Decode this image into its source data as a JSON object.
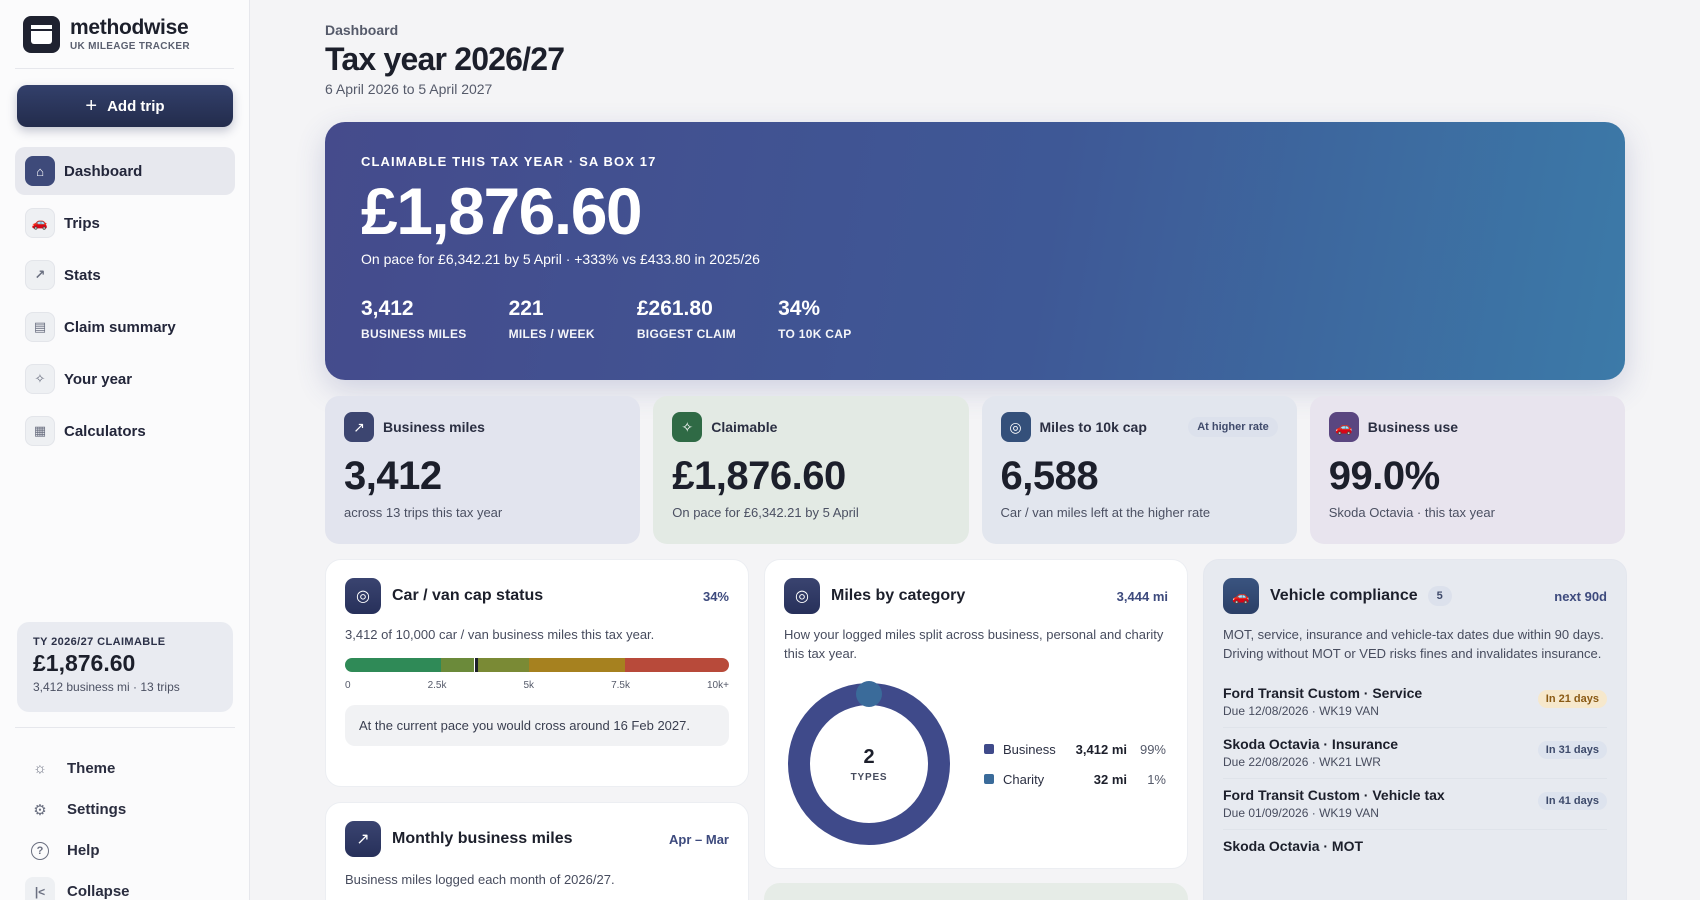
{
  "brand": {
    "name": "methodwise",
    "sub": "UK MILEAGE TRACKER"
  },
  "sidebar": {
    "add_trip": "Add trip",
    "nav": [
      {
        "label": "Dashboard",
        "icon": "home-icon",
        "glyph": "⌂"
      },
      {
        "label": "Trips",
        "icon": "car-icon",
        "glyph": "🚗"
      },
      {
        "label": "Stats",
        "icon": "trend-icon",
        "glyph": "↗"
      },
      {
        "label": "Claim summary",
        "icon": "document-icon",
        "glyph": "▤"
      },
      {
        "label": "Your year",
        "icon": "sparkle-icon",
        "glyph": "✧"
      },
      {
        "label": "Calculators",
        "icon": "calculator-icon",
        "glyph": "▦"
      }
    ],
    "card": {
      "label": "TY 2026/27 CLAIMABLE",
      "value": "£1,876.60",
      "sub": "3,412 business mi · 13 trips"
    },
    "bottom": [
      {
        "label": "Theme",
        "icon": "sun-icon",
        "glyph": "☼"
      },
      {
        "label": "Settings",
        "icon": "gear-icon",
        "glyph": "⚙"
      },
      {
        "label": "Help",
        "icon": "help-icon",
        "glyph": "?"
      },
      {
        "label": "Collapse",
        "icon": "collapse-icon",
        "glyph": "|<"
      }
    ]
  },
  "header": {
    "breadcrumb": "Dashboard",
    "title": "Tax year 2026/27",
    "subtitle": "6 April 2026 to 5 April 2027"
  },
  "hero": {
    "eyebrow": "CLAIMABLE THIS TAX YEAR · SA BOX 17",
    "value": "£1,876.60",
    "pace": "On pace for £6,342.21 by 5 April · +333% vs £433.80 in 2025/26",
    "stats": [
      {
        "value": "3,412",
        "label": "BUSINESS MILES"
      },
      {
        "value": "221",
        "label": "MILES / WEEK"
      },
      {
        "value": "£261.80",
        "label": "BIGGEST CLAIM"
      },
      {
        "value": "34%",
        "label": "TO 10K CAP"
      }
    ]
  },
  "kpis": [
    {
      "label": "Business miles",
      "value": "3,412",
      "sub": "across 13 trips this tax year",
      "badge": "",
      "bg": "#e2e4ee",
      "icon_bg": "#3c4570",
      "icon": "trend-icon",
      "glyph": "↗"
    },
    {
      "label": "Claimable",
      "value": "£1,876.60",
      "sub": "On pace for £6,342.21 by 5 April",
      "badge": "",
      "bg": "#e3eae4",
      "icon_bg": "#2f6a45",
      "icon": "sparkle-icon",
      "glyph": "✧"
    },
    {
      "label": "Miles to 10k cap",
      "value": "6,588",
      "sub": "Car / van miles left at the higher rate",
      "badge": "At higher rate",
      "bg": "#e2e6ee",
      "icon_bg": "#34507a",
      "icon": "target-icon",
      "glyph": "◎"
    },
    {
      "label": "Business use",
      "value": "99.0%",
      "sub": "Skoda Octavia · this tax year",
      "badge": "",
      "bg": "#e8e4ee",
      "icon_bg": "#5a4680",
      "icon": "car-icon",
      "glyph": "🚗"
    }
  ],
  "cap_card": {
    "title": "Car / van cap status",
    "meta": "34%",
    "desc": "3,412 of 10,000 car / van business miles this tax year.",
    "progress": 0.3412,
    "ticks": [
      "0",
      "2.5k",
      "5k",
      "7.5k",
      "10k+"
    ],
    "note": "At the current pace you would cross around 16 Feb 2027.",
    "segment_colors": [
      "#2f8a57",
      "#6b8a3a",
      "#7a8a35",
      "#a6811f",
      "#9c7a1a",
      "#b84a3a"
    ]
  },
  "monthly_card": {
    "title": "Monthly business miles",
    "meta": "Apr – Mar",
    "desc": "Business miles logged each month of 2026/27."
  },
  "category_card": {
    "title": "Miles by category",
    "meta": "3,444 mi",
    "desc": "How your logged miles split across business, personal and charity this tax year.",
    "center_value": "2",
    "center_label": "TYPES"
  },
  "chart_data": {
    "type": "pie",
    "categories": [
      "Business",
      "Charity"
    ],
    "values": [
      3412,
      32
    ],
    "value_labels": [
      "3,412 mi",
      "32 mi"
    ],
    "percents": [
      "99%",
      "1%"
    ],
    "colors": [
      "#3f4a8a",
      "#3a6b9a"
    ]
  },
  "compliance": {
    "title": "Vehicle compliance",
    "count": "5",
    "meta": "next 90d",
    "desc": "MOT, service, insurance and vehicle-tax dates due within 90 days. Driving without MOT or VED risks fines and invalidates insurance.",
    "items": [
      {
        "name": "Ford Transit Custom · Service",
        "due": "Due 12/08/2026 · WK19 VAN",
        "badge": "In 21 days",
        "warn": true
      },
      {
        "name": "Skoda Octavia · Insurance",
        "due": "Due 22/08/2026 · WK21 LWR",
        "badge": "In 31 days",
        "warn": false
      },
      {
        "name": "Ford Transit Custom · Vehicle tax",
        "due": "Due 01/09/2026 · WK19 VAN",
        "badge": "In 41 days",
        "warn": false
      },
      {
        "name": "Skoda Octavia · MOT",
        "due": "",
        "badge": "",
        "warn": false
      }
    ]
  }
}
